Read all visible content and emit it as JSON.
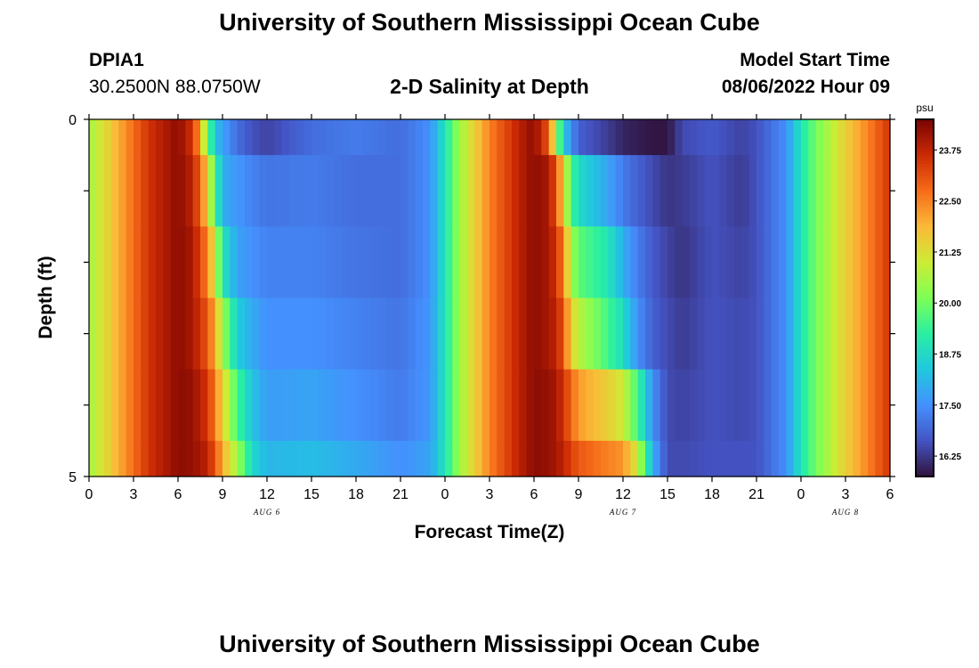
{
  "page": {
    "title_top": "University of Southern Mississippi Ocean Cube",
    "title_bottom": "University of Southern Mississippi Ocean Cube",
    "station": "DPIA1",
    "coordinates": "30.2500N  88.0750W",
    "subtitle": "2-D Salinity at Depth",
    "model_start_label": "Model Start Time",
    "model_start_value": "08/06/2022 Hour 09"
  },
  "chart_data": {
    "type": "heatmap",
    "title": "2-D Salinity at Depth",
    "xlabel": "Forecast Time(Z)",
    "ylabel": "Depth (ft)",
    "x_range_hours": [
      0,
      54
    ],
    "x_ticks": [
      "0",
      "3",
      "6",
      "9",
      "12",
      "15",
      "18",
      "21",
      "0",
      "3",
      "6",
      "9",
      "12",
      "15",
      "18",
      "21",
      "0",
      "3",
      "6"
    ],
    "date_labels": [
      {
        "hour": 12,
        "label": "AUG 6"
      },
      {
        "hour": 36,
        "label": "AUG 7"
      },
      {
        "hour": 51,
        "label": "AUG 8"
      }
    ],
    "y_range": [
      0,
      5
    ],
    "y_tick_labels": [
      "0",
      "5"
    ],
    "colorbar": {
      "unit": "psu",
      "min": 15.75,
      "max": 24.5,
      "ticks": [
        "23.75",
        "22.50",
        "21.25",
        "20.00",
        "18.75",
        "17.50",
        "16.25"
      ],
      "colors": [
        "#30123b",
        "#4454c4",
        "#4490fe",
        "#1fc8de",
        "#29efa2",
        "#7eff55",
        "#cdec34",
        "#fbb938",
        "#f66b19",
        "#cb2a04",
        "#7a0403"
      ]
    },
    "depth_bins_ft": [
      0,
      0.5,
      1.5,
      2.5,
      3.5,
      4.5,
      5
    ],
    "salinity_keyframes_psu": [
      {
        "hour": 0,
        "values": [
          20.5,
          20.5,
          20.5,
          20.5,
          20.5,
          20.5
        ]
      },
      {
        "hour": 2,
        "values": [
          22.0,
          22.0,
          22.0,
          22.0,
          22.0,
          22.0
        ]
      },
      {
        "hour": 4,
        "values": [
          23.5,
          23.5,
          23.5,
          23.5,
          23.5,
          23.5
        ]
      },
      {
        "hour": 6,
        "values": [
          24.3,
          24.3,
          24.3,
          24.3,
          24.3,
          24.3
        ]
      },
      {
        "hour": 7,
        "values": [
          23.5,
          23.8,
          24.0,
          24.0,
          24.2,
          24.2
        ]
      },
      {
        "hour": 7.5,
        "values": [
          22.0,
          22.8,
          23.2,
          23.5,
          23.8,
          24.0
        ]
      },
      {
        "hour": 8,
        "values": [
          20.0,
          21.5,
          22.5,
          23.0,
          23.5,
          23.8
        ]
      },
      {
        "hour": 8.5,
        "values": [
          18.3,
          19.5,
          21.0,
          22.0,
          22.5,
          23.0
        ]
      },
      {
        "hour": 9,
        "values": [
          17.8,
          18.0,
          19.0,
          20.5,
          21.5,
          22.0
        ]
      },
      {
        "hour": 10,
        "values": [
          17.0,
          17.6,
          17.8,
          18.5,
          19.5,
          20.5
        ]
      },
      {
        "hour": 11,
        "values": [
          16.6,
          17.3,
          17.5,
          17.9,
          18.3,
          18.7
        ]
      },
      {
        "hour": 12,
        "values": [
          16.4,
          17.1,
          17.3,
          17.5,
          17.7,
          18.1
        ]
      },
      {
        "hour": 15,
        "values": [
          17.0,
          17.2,
          17.3,
          17.5,
          17.8,
          18.2
        ]
      },
      {
        "hour": 18,
        "values": [
          17.2,
          17.0,
          17.1,
          17.3,
          17.5,
          17.9
        ]
      },
      {
        "hour": 21,
        "values": [
          17.0,
          17.0,
          17.0,
          17.1,
          17.2,
          17.5
        ]
      },
      {
        "hour": 23,
        "values": [
          17.5,
          17.5,
          17.5,
          17.6,
          17.6,
          17.8
        ]
      },
      {
        "hour": 24,
        "values": [
          19.0,
          19.0,
          19.0,
          19.0,
          19.0,
          19.0
        ]
      },
      {
        "hour": 25,
        "values": [
          20.5,
          20.5,
          20.5,
          20.5,
          20.5,
          20.5
        ]
      },
      {
        "hour": 27,
        "values": [
          22.5,
          22.5,
          22.5,
          22.5,
          22.5,
          22.5
        ]
      },
      {
        "hour": 29,
        "values": [
          23.8,
          23.8,
          23.8,
          23.8,
          23.8,
          23.8
        ]
      },
      {
        "hour": 30,
        "values": [
          24.3,
          24.3,
          24.3,
          24.3,
          24.3,
          24.3
        ]
      },
      {
        "hour": 31,
        "values": [
          23.0,
          24.0,
          24.0,
          24.0,
          24.2,
          24.2
        ]
      },
      {
        "hour": 31.5,
        "values": [
          20.5,
          23.0,
          23.5,
          23.8,
          24.0,
          24.0
        ]
      },
      {
        "hour": 32,
        "values": [
          18.5,
          21.5,
          22.5,
          23.0,
          23.5,
          23.8
        ]
      },
      {
        "hour": 32.5,
        "values": [
          17.5,
          19.5,
          20.5,
          21.5,
          22.8,
          23.3
        ]
      },
      {
        "hour": 33,
        "values": [
          16.8,
          18.8,
          19.8,
          20.8,
          22.2,
          23.0
        ]
      },
      {
        "hour": 35,
        "values": [
          16.3,
          17.8,
          19.0,
          19.5,
          21.5,
          22.5
        ]
      },
      {
        "hour": 36,
        "values": [
          16.0,
          17.2,
          18.0,
          18.8,
          21.0,
          22.3
        ]
      },
      {
        "hour": 37,
        "values": [
          15.9,
          16.8,
          17.2,
          17.5,
          19.5,
          21.0
        ]
      },
      {
        "hour": 38,
        "values": [
          15.8,
          16.5,
          16.7,
          16.8,
          17.5,
          18.0
        ]
      },
      {
        "hour": 39,
        "values": [
          15.8,
          16.2,
          16.4,
          16.5,
          16.5,
          16.5
        ]
      },
      {
        "hour": 40,
        "values": [
          16.5,
          16.3,
          16.2,
          16.3,
          16.4,
          16.5
        ]
      },
      {
        "hour": 42,
        "values": [
          16.7,
          16.6,
          16.6,
          16.6,
          16.6,
          16.6
        ]
      },
      {
        "hour": 44,
        "values": [
          16.4,
          16.3,
          16.4,
          16.5,
          16.5,
          16.6
        ]
      },
      {
        "hour": 45,
        "values": [
          16.6,
          16.6,
          16.6,
          16.6,
          16.6,
          16.6
        ]
      },
      {
        "hour": 47,
        "values": [
          17.5,
          17.5,
          17.5,
          17.5,
          17.5,
          17.5
        ]
      },
      {
        "hour": 48,
        "values": [
          19.0,
          19.0,
          19.0,
          19.0,
          19.0,
          19.0
        ]
      },
      {
        "hour": 49,
        "values": [
          20.0,
          20.0,
          20.0,
          20.0,
          20.0,
          20.0
        ]
      },
      {
        "hour": 51,
        "values": [
          21.5,
          21.5,
          21.5,
          21.5,
          21.5,
          21.5
        ]
      },
      {
        "hour": 53,
        "values": [
          22.8,
          22.8,
          22.8,
          22.8,
          22.8,
          22.8
        ]
      },
      {
        "hour": 54,
        "values": [
          23.5,
          23.5,
          23.5,
          23.5,
          23.5,
          23.5
        ]
      }
    ]
  }
}
